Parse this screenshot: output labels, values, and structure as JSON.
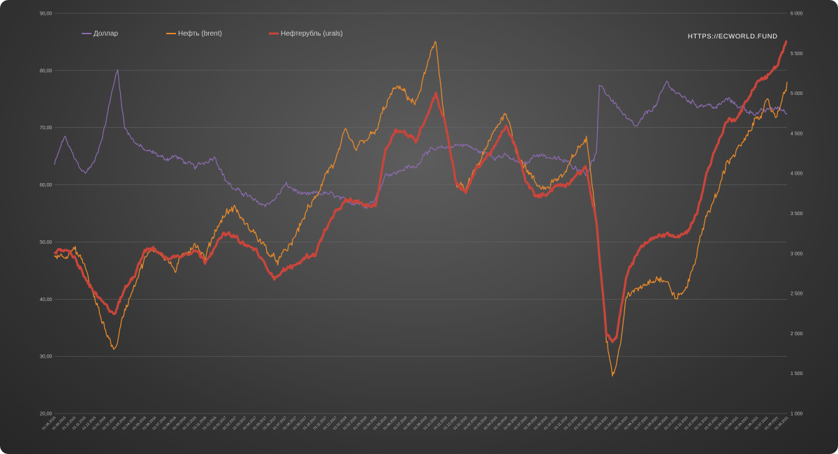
{
  "chart_data": {
    "type": "line",
    "watermark": "HTTPS://ECWORLD.FUND",
    "left_axis": {
      "min": 20,
      "max": 90,
      "ticks": [
        "20,00",
        "30,00",
        "40,00",
        "50,00",
        "60,00",
        "70,00",
        "80,00",
        "90,00"
      ]
    },
    "right_axis": {
      "min": 1000,
      "max": 6000,
      "ticks": [
        "1 000",
        "1 500",
        "2 000",
        "2 500",
        "3 000",
        "3 500",
        "4 000",
        "4 500",
        "5 000",
        "5 500",
        "6 000"
      ]
    },
    "x_labels": [
      "01.08.2015",
      "01.09.2015",
      "01.10.2015",
      "01.11.2015",
      "01.12.2015",
      "01.01.2016",
      "01.02.2016",
      "01.03.2016",
      "01.04.2016",
      "01.05.2016",
      "01.06.2016",
      "01.07.2016",
      "01.08.2016",
      "01.09.2016",
      "01.10.2016",
      "01.11.2016",
      "01.12.2016",
      "01.01.2017",
      "01.02.2017",
      "01.03.2017",
      "01.04.2017",
      "01.05.2017",
      "01.06.2017",
      "01.07.2017",
      "01.08.2017",
      "01.09.2017",
      "01.10.2017",
      "01.11.2017",
      "01.12.2017",
      "01.01.2018",
      "01.02.2018",
      "01.03.2018",
      "01.04.2018",
      "01.05.2018",
      "01.06.2018",
      "01.07.2018",
      "01.08.2018",
      "01.09.2018",
      "01.10.2018",
      "01.11.2018",
      "01.12.2018",
      "01.01.2019",
      "01.02.2019",
      "01.03.2019",
      "01.04.2019",
      "01.05.2019",
      "01.06.2019",
      "01.07.2019",
      "01.08.2019",
      "01.09.2019",
      "01.10.2019",
      "01.11.2019",
      "01.12.2019",
      "01.01.2020",
      "01.02.2020",
      "01.03.2020",
      "01.04.2020",
      "01.05.2020",
      "01.06.2020",
      "01.07.2020",
      "01.08.2020",
      "01.09.2020",
      "01.10.2020",
      "01.11.2020",
      "01.12.2020",
      "01.01.2021",
      "01.02.2021",
      "01.03.2021",
      "01.04.2021",
      "01.05.2021",
      "01.06.2021",
      "01.07.2021",
      "01.08.2021",
      "01.09.2021"
    ],
    "series": [
      {
        "name": "Доллар",
        "axis": "left",
        "color": "#8c6bb1",
        "anchors": [
          [
            0,
            63.5
          ],
          [
            1,
            68.5
          ],
          [
            2,
            64.5
          ],
          [
            3,
            62
          ],
          [
            4,
            64
          ],
          [
            5,
            70
          ],
          [
            6,
            78.5
          ],
          [
            6.3,
            80
          ],
          [
            7,
            70
          ],
          [
            8,
            67.5
          ],
          [
            9,
            66
          ],
          [
            10,
            65.5
          ],
          [
            11,
            64.5
          ],
          [
            12,
            65
          ],
          [
            13,
            64
          ],
          [
            14,
            63
          ],
          [
            15,
            64
          ],
          [
            16,
            65
          ],
          [
            17,
            61
          ],
          [
            18,
            59
          ],
          [
            19,
            58.5
          ],
          [
            20,
            57
          ],
          [
            21,
            56.5
          ],
          [
            22,
            57.5
          ],
          [
            23,
            60
          ],
          [
            24,
            59
          ],
          [
            25,
            58
          ],
          [
            26,
            58.5
          ],
          [
            27,
            58.5
          ],
          [
            28,
            58
          ],
          [
            29,
            57
          ],
          [
            30,
            57
          ],
          [
            31,
            56.5
          ],
          [
            32,
            57.5
          ],
          [
            33,
            62
          ],
          [
            34,
            62
          ],
          [
            35,
            63
          ],
          [
            36,
            63
          ],
          [
            37,
            66
          ],
          [
            38,
            66
          ],
          [
            39,
            66.5
          ],
          [
            40,
            67
          ],
          [
            41,
            67
          ],
          [
            42,
            66
          ],
          [
            43,
            65.5
          ],
          [
            44,
            65
          ],
          [
            45,
            65
          ],
          [
            46,
            64
          ],
          [
            47,
            63.5
          ],
          [
            48,
            65.5
          ],
          [
            49,
            65
          ],
          [
            50,
            64.5
          ],
          [
            51,
            64
          ],
          [
            52,
            63
          ],
          [
            53,
            62
          ],
          [
            54,
            65.5
          ],
          [
            54.3,
            77
          ],
          [
            55,
            76
          ],
          [
            56,
            74
          ],
          [
            57,
            71.5
          ],
          [
            58,
            70
          ],
          [
            59,
            72.5
          ],
          [
            60,
            74
          ],
          [
            61,
            78
          ],
          [
            62,
            76
          ],
          [
            63,
            75
          ],
          [
            64,
            74
          ],
          [
            65,
            74
          ],
          [
            66,
            73.5
          ],
          [
            67,
            75
          ],
          [
            68,
            74
          ],
          [
            69,
            73
          ],
          [
            70,
            72.5
          ],
          [
            71,
            73
          ],
          [
            72,
            73.5
          ],
          [
            73,
            72.5
          ]
        ]
      },
      {
        "name": "Нефть (brent)",
        "axis": "left",
        "color": "#e8892b",
        "anchors": [
          [
            0,
            47.5
          ],
          [
            1,
            48
          ],
          [
            2,
            48.5
          ],
          [
            3,
            46
          ],
          [
            4,
            40
          ],
          [
            5,
            35
          ],
          [
            6,
            31
          ],
          [
            7,
            38
          ],
          [
            8,
            43
          ],
          [
            9,
            47
          ],
          [
            10,
            49
          ],
          [
            11,
            47.5
          ],
          [
            12,
            45
          ],
          [
            13,
            48
          ],
          [
            14,
            50
          ],
          [
            15,
            47
          ],
          [
            16,
            52
          ],
          [
            17,
            55
          ],
          [
            18,
            56
          ],
          [
            19,
            53
          ],
          [
            20,
            51.5
          ],
          [
            21,
            49
          ],
          [
            22,
            46.5
          ],
          [
            23,
            48
          ],
          [
            24,
            51
          ],
          [
            25,
            55
          ],
          [
            26,
            57.5
          ],
          [
            27,
            62
          ],
          [
            28,
            64
          ],
          [
            29,
            69
          ],
          [
            30,
            66
          ],
          [
            31,
            68
          ],
          [
            32,
            69
          ],
          [
            33,
            74
          ],
          [
            34,
            77
          ],
          [
            35,
            76
          ],
          [
            36,
            74
          ],
          [
            37,
            80
          ],
          [
            38,
            85
          ],
          [
            39,
            70
          ],
          [
            40,
            60
          ],
          [
            41,
            59
          ],
          [
            42,
            63
          ],
          [
            43,
            66
          ],
          [
            44,
            70
          ],
          [
            45,
            73
          ],
          [
            46,
            66
          ],
          [
            47,
            63
          ],
          [
            48,
            60
          ],
          [
            49,
            59.5
          ],
          [
            50,
            61
          ],
          [
            51,
            62
          ],
          [
            52,
            66
          ],
          [
            53,
            68
          ],
          [
            54,
            55
          ],
          [
            55,
            33
          ],
          [
            55.6,
            27
          ],
          [
            56,
            28
          ],
          [
            57,
            40
          ],
          [
            58,
            42
          ],
          [
            59,
            43
          ],
          [
            60,
            44
          ],
          [
            61,
            43
          ],
          [
            62,
            40
          ],
          [
            63,
            42
          ],
          [
            64,
            48
          ],
          [
            65,
            55
          ],
          [
            66,
            58
          ],
          [
            67,
            64
          ],
          [
            68,
            66
          ],
          [
            69,
            68
          ],
          [
            70,
            72
          ],
          [
            71,
            74
          ],
          [
            72,
            72
          ],
          [
            73,
            78
          ]
        ]
      },
      {
        "name": "Нефтерубль (urals)",
        "axis": "right",
        "color": "#c9453b",
        "anchors": [
          [
            0,
            3000
          ],
          [
            1,
            3050
          ],
          [
            2,
            2950
          ],
          [
            3,
            2700
          ],
          [
            4,
            2500
          ],
          [
            5,
            2350
          ],
          [
            6,
            2250
          ],
          [
            7,
            2550
          ],
          [
            8,
            2750
          ],
          [
            9,
            3050
          ],
          [
            10,
            3050
          ],
          [
            11,
            2950
          ],
          [
            12,
            2950
          ],
          [
            13,
            3000
          ],
          [
            14,
            3050
          ],
          [
            15,
            2900
          ],
          [
            16,
            3100
          ],
          [
            17,
            3250
          ],
          [
            18,
            3200
          ],
          [
            19,
            3100
          ],
          [
            20,
            3050
          ],
          [
            21,
            2850
          ],
          [
            22,
            2700
          ],
          [
            23,
            2800
          ],
          [
            24,
            2850
          ],
          [
            25,
            2950
          ],
          [
            26,
            3000
          ],
          [
            27,
            3300
          ],
          [
            28,
            3500
          ],
          [
            29,
            3650
          ],
          [
            30,
            3650
          ],
          [
            31,
            3600
          ],
          [
            32,
            3600
          ],
          [
            33,
            4300
          ],
          [
            34,
            4550
          ],
          [
            35,
            4500
          ],
          [
            36,
            4400
          ],
          [
            37,
            4700
          ],
          [
            38,
            5000
          ],
          [
            39,
            4600
          ],
          [
            40,
            3900
          ],
          [
            41,
            3750
          ],
          [
            42,
            4050
          ],
          [
            43,
            4200
          ],
          [
            44,
            4350
          ],
          [
            45,
            4600
          ],
          [
            46,
            4300
          ],
          [
            47,
            3900
          ],
          [
            48,
            3700
          ],
          [
            49,
            3750
          ],
          [
            50,
            3850
          ],
          [
            51,
            3850
          ],
          [
            52,
            4000
          ],
          [
            53,
            4050
          ],
          [
            54,
            3400
          ],
          [
            55,
            2000
          ],
          [
            55.6,
            1900
          ],
          [
            56,
            1950
          ],
          [
            57,
            2700
          ],
          [
            58,
            3000
          ],
          [
            59,
            3150
          ],
          [
            60,
            3200
          ],
          [
            61,
            3250
          ],
          [
            62,
            3200
          ],
          [
            63,
            3250
          ],
          [
            64,
            3500
          ],
          [
            65,
            4000
          ],
          [
            66,
            4350
          ],
          [
            67,
            4650
          ],
          [
            68,
            4700
          ],
          [
            69,
            4900
          ],
          [
            70,
            5150
          ],
          [
            71,
            5200
          ],
          [
            72,
            5350
          ],
          [
            73,
            5650
          ]
        ]
      }
    ]
  }
}
